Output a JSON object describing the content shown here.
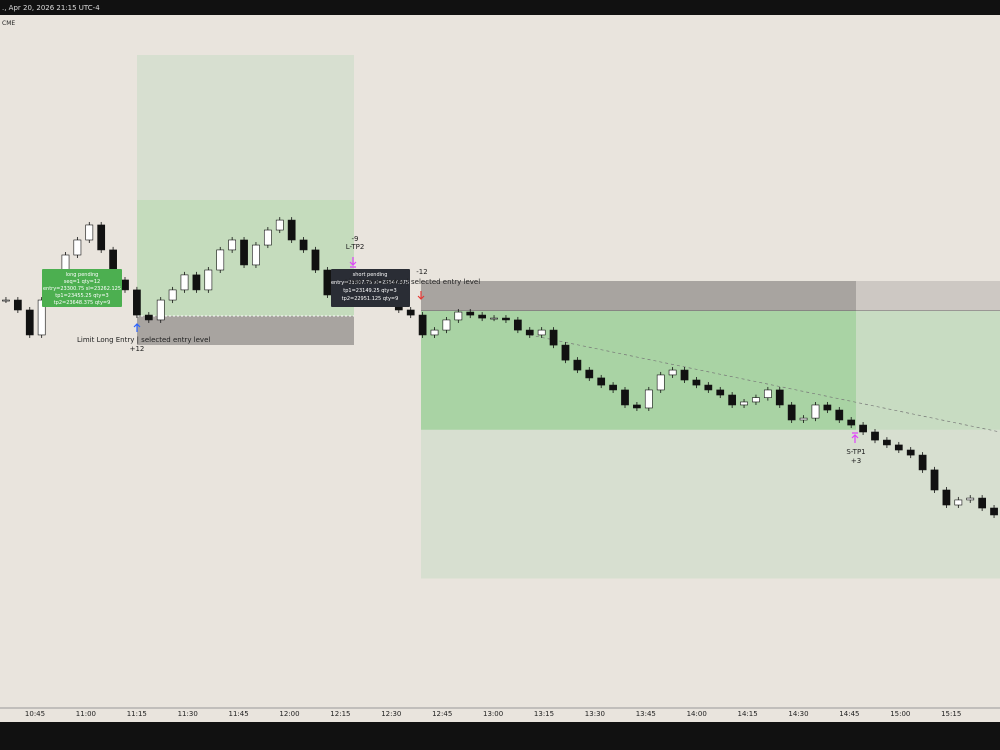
{
  "header": {
    "title": "., Apr 20, 2026 21:15 UTC-4",
    "exchange": "CME"
  },
  "long_order": {
    "lines": [
      "long pending",
      "seq=1 qty=12",
      "entry=23300.75 sl=23262.125",
      "tp1=23455.25 qty=3",
      "tp2=23648.375 qty=9"
    ],
    "entry": 23300.75,
    "sl": 23262.125,
    "tp1": 23455.25,
    "tp2": 23648.375,
    "entry_label": "Limit Long Entry | selected entry level",
    "fill_qty": "+12",
    "tp_qty": "-9",
    "tp_label": "L-TP2"
  },
  "short_order": {
    "lines": [
      "short pending",
      "entry=23307.75 sl=23347.375",
      "tp1=23149.25 qty=3",
      "tp2=22951.125 qty=9"
    ],
    "entry": 23307.75,
    "sl": 23347.375,
    "tp1": 23149.25,
    "tp2": 22951.125,
    "entry_label": "Limit Short Entry | selected entry level",
    "fill_qty": "-12",
    "tp_label": "S-TP1",
    "tp_qty": "+3"
  },
  "candles": {
    "closes": [
      23322.0,
      23308.75,
      23275.5,
      23322.0,
      23322.0,
      23382.0,
      23402.0,
      23422.0,
      23388.75,
      23348.75,
      23335.5,
      23302.0,
      23295.5,
      23322.0,
      23335.5,
      23355.5,
      23335.5,
      23362.0,
      23388.75,
      23402.0,
      23368.75,
      23395.25,
      23415.25,
      23428.5,
      23402.0,
      23388.75,
      23362.0,
      23328.75,
      23322.0,
      23328.75,
      23335.5,
      23342.0,
      23322.0,
      23308.75,
      23302.0,
      23275.5,
      23282.0,
      23295.5,
      23306.0,
      23302.0,
      23298.0,
      23298.0,
      23295.5,
      23282.0,
      23275.5,
      23282.0,
      23262.0,
      23242.0,
      23228.75,
      23218.25,
      23208.75,
      23202.25,
      23182.25,
      23178.25,
      23202.25,
      23222.25,
      23228.75,
      23215.5,
      23208.75,
      23202.25,
      23195.5,
      23182.25,
      23186.25,
      23192.0,
      23202.25,
      23182.25,
      23162.25,
      23164.75,
      23182.25,
      23175.5,
      23162.25,
      23155.5,
      23146.25,
      23135.5,
      23129.0,
      23122.25,
      23115.5,
      23095.75,
      23069.0,
      23049.0,
      23055.75,
      23058.25,
      23045.0,
      23035.75
    ]
  },
  "time_axis": [
    "10:45",
    "11:00",
    "11:15",
    "11:30",
    "11:45",
    "12:00",
    "12:15",
    "12:30",
    "12:45",
    "13:00",
    "13:15",
    "13:30",
    "13:45",
    "14:00",
    "14:15",
    "14:30",
    "14:45",
    "15:00",
    "15:15"
  ]
}
